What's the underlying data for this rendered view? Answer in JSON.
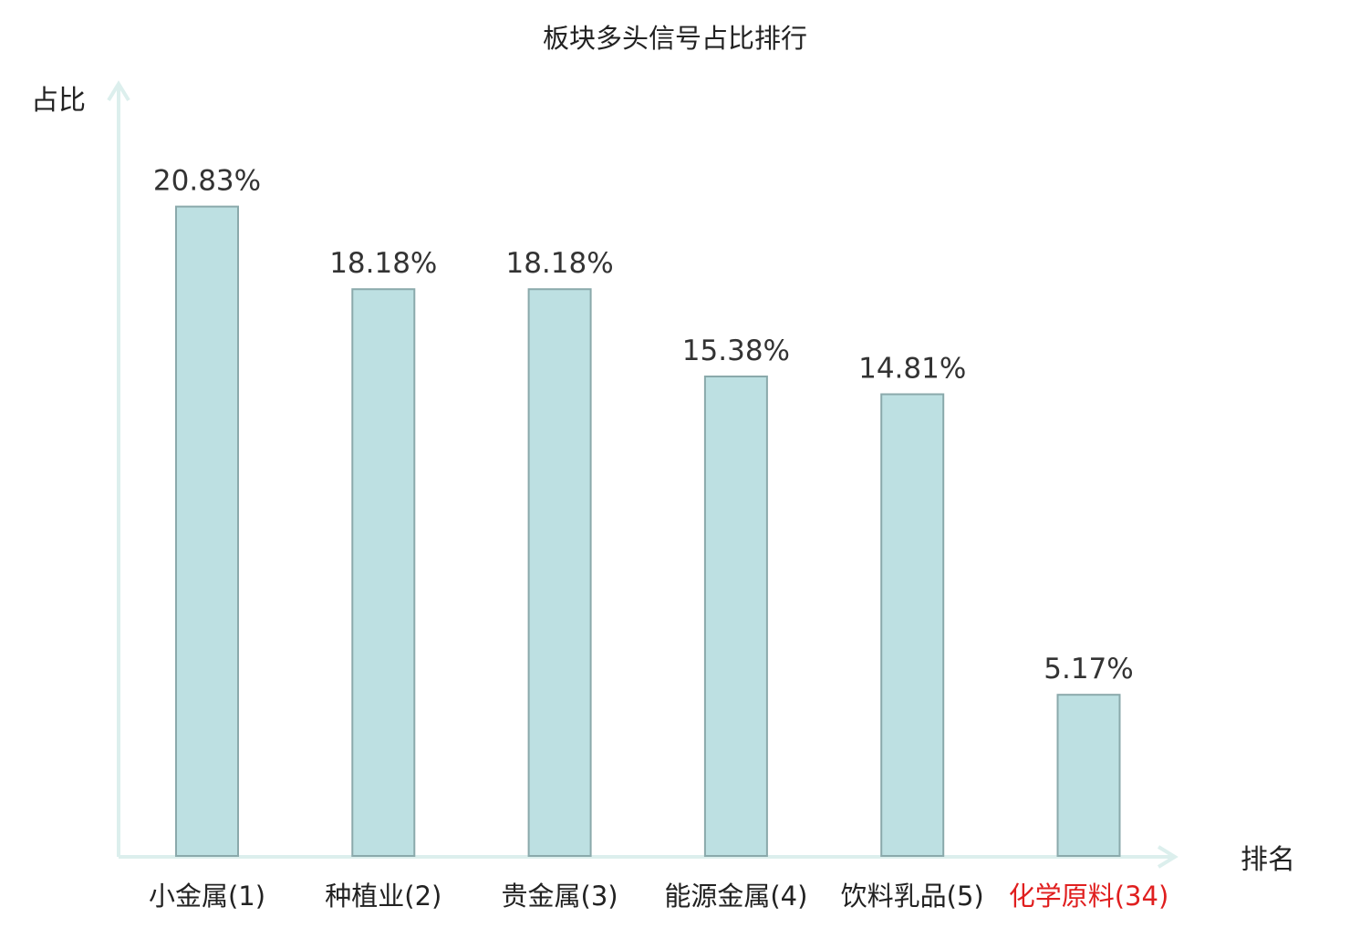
{
  "chart_data": {
    "type": "bar",
    "title": "板块多头信号占比排行",
    "ylabel": "占比",
    "xlabel": "排名",
    "categories": [
      "小金属(1)",
      "种植业(2)",
      "贵金属(3)",
      "能源金属(4)",
      "饮料乳品(5)",
      "化学原料(34)"
    ],
    "values": [
      20.83,
      18.18,
      18.18,
      15.38,
      14.81,
      5.17
    ],
    "value_labels": [
      "20.83%",
      "18.18%",
      "18.18%",
      "15.38%",
      "14.81%",
      "5.17%"
    ],
    "highlight_index": 5,
    "ylim": [
      0,
      25
    ],
    "grid": false,
    "colors": {
      "bar_fill": "#bde0e2",
      "bar_stroke": "#8aa9ab",
      "axis": "#dcefed",
      "highlight_text": "#e01f1f"
    }
  }
}
